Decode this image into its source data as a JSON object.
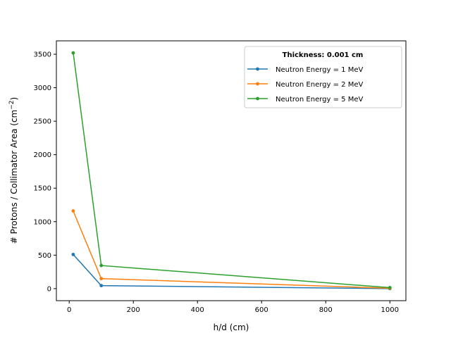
{
  "chart_data": {
    "type": "line",
    "title": "",
    "xlabel": "h/d (cm)",
    "ylabel_main": "# Protons / Collimator Area (cm",
    "ylabel_sup": "−2",
    "ylabel_close": ")",
    "xlim": [
      -40,
      1050
    ],
    "ylim": [
      -180,
      3700
    ],
    "x_ticks": [
      0,
      200,
      400,
      600,
      800,
      1000
    ],
    "y_ticks": [
      0,
      500,
      1000,
      1500,
      2000,
      2500,
      3000,
      3500
    ],
    "grid": false,
    "legend": {
      "placement": "upper right",
      "title": "Thickness: 0.001 cm"
    },
    "x": [
      12.5,
      100,
      1000
    ],
    "series": [
      {
        "name": "Neutron Energy = 1 MeV",
        "color": "#1f77b4",
        "values": [
          510,
          45,
          0
        ]
      },
      {
        "name": "Neutron Energy = 2 MeV",
        "color": "#ff7f0e",
        "values": [
          1160,
          150,
          5
        ]
      },
      {
        "name": "Neutron Energy = 5 MeV",
        "color": "#2ca02c",
        "values": [
          3520,
          345,
          15
        ]
      }
    ]
  }
}
